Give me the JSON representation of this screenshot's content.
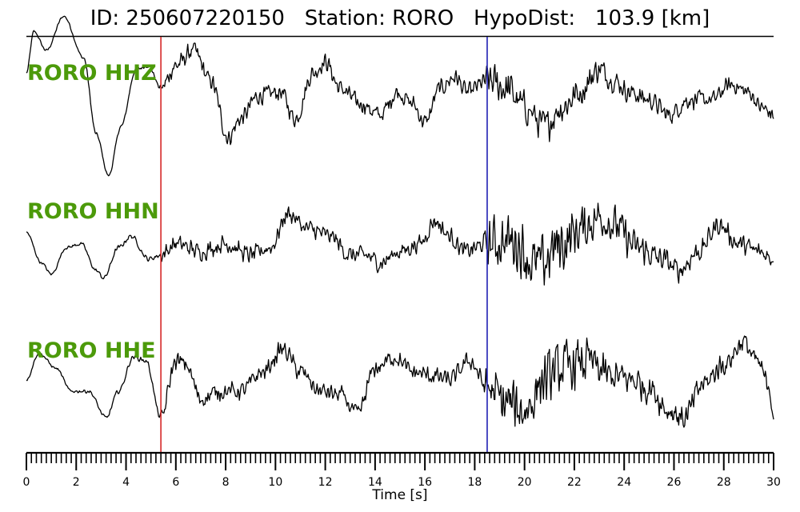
{
  "chart_data": {
    "type": "line",
    "title": "ID: 250607220150   Station: RORO   HypoDist:   103.9 [km]",
    "xlabel": "Time [s]",
    "ylabel": "",
    "xlim": [
      0,
      30
    ],
    "x_ticks": [
      "0",
      "2",
      "4",
      "6",
      "8",
      "10",
      "12",
      "14",
      "16",
      "18",
      "20",
      "22",
      "24",
      "26",
      "28",
      "30"
    ],
    "minor_tick_step": 0.2,
    "grid": false,
    "markers": [
      {
        "name": "P pick",
        "time": 5.4,
        "color": "#d62728"
      },
      {
        "name": "S pick",
        "time": 18.5,
        "color": "#1f1fb4"
      }
    ],
    "series": [
      {
        "name": "RORO HHZ",
        "label_color": "#4c9a0a",
        "trace_color": "#000000",
        "envelope": [
          [
            0.0,
            0.3
          ],
          [
            0.3,
            0.85
          ],
          [
            0.8,
            0.6
          ],
          [
            1.5,
            1.05
          ],
          [
            2.3,
            0.5
          ],
          [
            2.8,
            -0.5
          ],
          [
            3.3,
            -1.05
          ],
          [
            3.8,
            -0.4
          ],
          [
            4.4,
            0.35
          ],
          [
            4.9,
            0.4
          ],
          [
            5.4,
            0.1
          ],
          [
            6.0,
            0.4
          ],
          [
            6.7,
            0.6
          ],
          [
            7.4,
            0.2
          ],
          [
            8.1,
            -0.55
          ],
          [
            8.6,
            -0.3
          ],
          [
            9.3,
            0.0
          ],
          [
            10.2,
            0.05
          ],
          [
            10.8,
            -0.3
          ],
          [
            11.5,
            0.3
          ],
          [
            12.0,
            0.45
          ],
          [
            12.6,
            0.1
          ],
          [
            13.4,
            -0.1
          ],
          [
            14.2,
            -0.25
          ],
          [
            14.9,
            0.05
          ],
          [
            15.5,
            -0.1
          ],
          [
            16.0,
            -0.35
          ],
          [
            16.6,
            0.1
          ],
          [
            17.2,
            0.25
          ],
          [
            17.7,
            0.05
          ],
          [
            18.5,
            0.2
          ],
          [
            19.3,
            0.1
          ],
          [
            20.0,
            -0.15
          ],
          [
            20.8,
            -0.4
          ],
          [
            21.5,
            -0.15
          ],
          [
            22.2,
            0.05
          ],
          [
            23.0,
            0.35
          ],
          [
            23.6,
            0.2
          ],
          [
            24.2,
            0.05
          ],
          [
            25.0,
            -0.05
          ],
          [
            25.8,
            -0.25
          ],
          [
            26.6,
            -0.05
          ],
          [
            27.5,
            -0.05
          ],
          [
            28.3,
            0.15
          ],
          [
            29.0,
            0.05
          ],
          [
            29.5,
            -0.15
          ],
          [
            30.0,
            -0.25
          ]
        ],
        "noise": [
          [
            0.0,
            0.02
          ],
          [
            5.3,
            0.03
          ],
          [
            5.5,
            0.14
          ],
          [
            18.3,
            0.14
          ],
          [
            18.6,
            0.3
          ],
          [
            22.0,
            0.24
          ],
          [
            24.0,
            0.16
          ],
          [
            30.0,
            0.12
          ]
        ]
      },
      {
        "name": "RORO HHN",
        "label_color": "#4c9a0a",
        "trace_color": "#000000",
        "envelope": [
          [
            0.0,
            0.1
          ],
          [
            0.6,
            -0.3
          ],
          [
            1.0,
            -0.45
          ],
          [
            1.6,
            -0.1
          ],
          [
            2.2,
            -0.05
          ],
          [
            2.8,
            -0.4
          ],
          [
            3.1,
            -0.5
          ],
          [
            3.7,
            -0.1
          ],
          [
            4.2,
            0.05
          ],
          [
            4.9,
            -0.25
          ],
          [
            5.4,
            -0.2
          ],
          [
            6.0,
            -0.05
          ],
          [
            7.0,
            -0.15
          ],
          [
            8.0,
            -0.05
          ],
          [
            9.0,
            -0.2
          ],
          [
            9.8,
            -0.1
          ],
          [
            10.5,
            0.35
          ],
          [
            11.3,
            0.15
          ],
          [
            12.2,
            0.05
          ],
          [
            13.0,
            -0.2
          ],
          [
            13.6,
            -0.2
          ],
          [
            14.2,
            -0.3
          ],
          [
            15.0,
            -0.15
          ],
          [
            15.8,
            -0.05
          ],
          [
            16.4,
            0.25
          ],
          [
            17.0,
            0.05
          ],
          [
            17.6,
            -0.15
          ],
          [
            18.5,
            -0.05
          ],
          [
            19.5,
            0.0
          ],
          [
            20.5,
            -0.35
          ],
          [
            21.5,
            -0.05
          ],
          [
            22.3,
            0.15
          ],
          [
            23.0,
            0.3
          ],
          [
            23.6,
            0.2
          ],
          [
            24.5,
            -0.1
          ],
          [
            25.5,
            -0.25
          ],
          [
            26.2,
            -0.4
          ],
          [
            27.0,
            -0.15
          ],
          [
            27.8,
            0.2
          ],
          [
            28.6,
            -0.05
          ],
          [
            29.4,
            -0.15
          ],
          [
            30.0,
            -0.25
          ]
        ],
        "noise": [
          [
            0.0,
            0.02
          ],
          [
            5.3,
            0.04
          ],
          [
            5.5,
            0.14
          ],
          [
            18.3,
            0.14
          ],
          [
            18.6,
            0.42
          ],
          [
            21.0,
            0.48
          ],
          [
            23.5,
            0.3
          ],
          [
            26.0,
            0.18
          ],
          [
            30.0,
            0.14
          ]
        ]
      },
      {
        "name": "RORO HHE",
        "label_color": "#4c9a0a",
        "trace_color": "#000000",
        "envelope": [
          [
            0.0,
            -0.05
          ],
          [
            0.5,
            0.3
          ],
          [
            1.2,
            0.1
          ],
          [
            1.8,
            -0.2
          ],
          [
            2.5,
            -0.2
          ],
          [
            3.2,
            -0.55
          ],
          [
            3.7,
            -0.2
          ],
          [
            4.3,
            0.25
          ],
          [
            4.8,
            0.2
          ],
          [
            5.4,
            -0.55
          ],
          [
            6.0,
            0.2
          ],
          [
            6.4,
            0.15
          ],
          [
            7.0,
            -0.3
          ],
          [
            7.8,
            -0.2
          ],
          [
            8.6,
            -0.2
          ],
          [
            9.5,
            0.05
          ],
          [
            10.3,
            0.35
          ],
          [
            11.0,
            0.05
          ],
          [
            11.8,
            -0.2
          ],
          [
            12.6,
            -0.25
          ],
          [
            13.3,
            -0.5
          ],
          [
            14.0,
            0.1
          ],
          [
            14.8,
            0.25
          ],
          [
            15.5,
            0.05
          ],
          [
            16.3,
            0.0
          ],
          [
            17.0,
            -0.05
          ],
          [
            17.8,
            0.2
          ],
          [
            18.5,
            -0.15
          ],
          [
            19.2,
            -0.35
          ],
          [
            20.0,
            -0.45
          ],
          [
            20.8,
            -0.05
          ],
          [
            21.5,
            0.1
          ],
          [
            22.5,
            0.2
          ],
          [
            23.4,
            0.0
          ],
          [
            24.3,
            -0.05
          ],
          [
            25.0,
            -0.15
          ],
          [
            25.8,
            -0.45
          ],
          [
            26.4,
            -0.55
          ],
          [
            27.2,
            -0.1
          ],
          [
            28.0,
            0.15
          ],
          [
            28.8,
            0.45
          ],
          [
            29.3,
            0.2
          ],
          [
            29.8,
            -0.1
          ],
          [
            30.0,
            -0.5
          ]
        ],
        "noise": [
          [
            0.0,
            0.02
          ],
          [
            5.3,
            0.04
          ],
          [
            5.5,
            0.14
          ],
          [
            18.3,
            0.14
          ],
          [
            18.6,
            0.42
          ],
          [
            21.5,
            0.42
          ],
          [
            24.0,
            0.26
          ],
          [
            30.0,
            0.16
          ]
        ]
      }
    ]
  }
}
